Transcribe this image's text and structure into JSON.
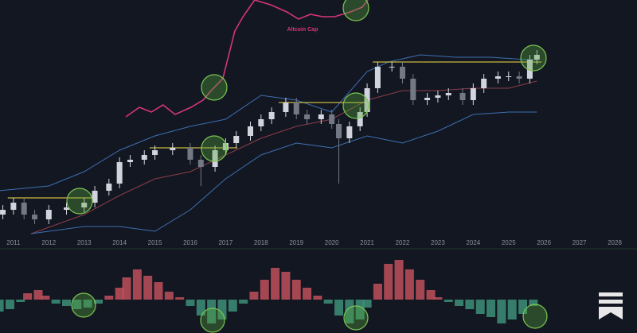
{
  "chart_data": [
    {
      "type": "candlestick",
      "x": [
        2010.7,
        2011.0,
        2011.3,
        2011.6,
        2012.0,
        2012.5,
        2013.0,
        2013.3,
        2013.7,
        2014.0,
        2014.3,
        2014.7,
        2015.0,
        2015.5,
        2016.0,
        2016.3,
        2016.7,
        2017.0,
        2017.3,
        2017.7,
        2018.0,
        2018.3,
        2018.7,
        2019.0,
        2019.3,
        2019.7,
        2020.0,
        2020.2,
        2020.5,
        2020.8,
        2021.0,
        2021.3,
        2021.7,
        2022.0,
        2022.3,
        2022.7,
        2023.0,
        2023.3,
        2023.7,
        2024.0,
        2024.3,
        2024.7,
        2025.0,
        2025.3,
        2025.6,
        2025.8
      ],
      "open": [
        10,
        12,
        15,
        10,
        8,
        12,
        13,
        15,
        20,
        23,
        32,
        33,
        35,
        37,
        38,
        33,
        30,
        37,
        40,
        43,
        47,
        50,
        53,
        57,
        52,
        50,
        52,
        48,
        42,
        47,
        53,
        63,
        72,
        72,
        67,
        58,
        59,
        60,
        61,
        58,
        63,
        67,
        68,
        68,
        67,
        75
      ],
      "high": [
        14,
        17,
        17,
        12,
        14,
        15,
        17,
        22,
        25,
        34,
        35,
        37,
        39,
        40,
        40,
        35,
        39,
        42,
        45,
        49,
        52,
        55,
        59,
        59,
        54,
        54,
        54,
        50,
        49,
        55,
        65,
        74,
        74,
        74,
        69,
        61,
        62,
        63,
        63,
        65,
        69,
        70,
        70,
        70,
        77,
        79
      ],
      "low": [
        8,
        10,
        8,
        6,
        6,
        10,
        11,
        13,
        18,
        21,
        30,
        31,
        33,
        35,
        31,
        22,
        28,
        35,
        38,
        41,
        45,
        48,
        51,
        50,
        48,
        48,
        46,
        23,
        40,
        45,
        51,
        61,
        70,
        65,
        56,
        56,
        57,
        58,
        56,
        56,
        61,
        65,
        66,
        65,
        65,
        73
      ],
      "close": [
        12,
        15,
        10,
        8,
        12,
        13,
        15,
        20,
        23,
        32,
        33,
        35,
        37,
        38,
        33,
        30,
        37,
        40,
        43,
        47,
        50,
        53,
        57,
        52,
        50,
        52,
        48,
        42,
        47,
        53,
        63,
        72,
        72,
        67,
        58,
        59,
        60,
        61,
        58,
        63,
        67,
        68,
        68,
        67,
        75,
        77
      ],
      "up_color": "#d1d4dc",
      "down_color": "#737885",
      "xlim": [
        2010.62,
        2028.63
      ],
      "xticks": [
        2011,
        2012,
        2013,
        2014,
        2015,
        2016,
        2017,
        2018,
        2019,
        2020,
        2021,
        2022,
        2023,
        2024,
        2025,
        2026,
        2027,
        2028
      ],
      "ylim": [
        0,
        100
      ],
      "series": [
        {
          "color": "#3d6fb0",
          "x": [
            2010.6,
            2012,
            2013,
            2014,
            2015,
            2016,
            2017,
            2018,
            2019,
            2020,
            2021,
            2021.6,
            2022.5,
            2023.5,
            2024.5,
            2025.5,
            2025.8
          ],
          "values": [
            20,
            22,
            28,
            37,
            43,
            47,
            50,
            60,
            58,
            53,
            70,
            74,
            77,
            76,
            76,
            75,
            75
          ]
        },
        {
          "color": "#8a3d4a",
          "x": [
            2011.5,
            2013,
            2014,
            2015,
            2016,
            2017,
            2018,
            2019,
            2020,
            2021,
            2022,
            2023,
            2024,
            2025,
            2025.8
          ],
          "values": [
            2,
            10,
            18,
            25,
            28,
            35,
            42,
            47,
            50,
            58,
            62,
            62,
            63,
            63,
            66
          ]
        },
        {
          "color": "#3d6fb0",
          "x": [
            2011.5,
            2013,
            2014,
            2015,
            2016,
            2017,
            2018,
            2019,
            2020,
            2021,
            2022,
            2023,
            2024,
            2025,
            2025.8
          ],
          "values": [
            2,
            5,
            5,
            3,
            12,
            25,
            35,
            40,
            38,
            43,
            40,
            45,
            52,
            53,
            53
          ]
        },
        {
          "name": "Altcoin Cap",
          "color": "#d6357a",
          "x": [
            2014.18,
            2014.56,
            2014.9,
            2015.23,
            2015.57,
            2016.02,
            2016.36,
            2016.59,
            2016.92,
            2017.26,
            2017.49,
            2017.82,
            2018.27,
            2018.73,
            2019.06,
            2019.4,
            2019.74,
            2020.08,
            2020.53,
            2020.86,
            2021.02
          ],
          "values": [
            51,
            55,
            53,
            56,
            52,
            55,
            58,
            62,
            67,
            87,
            93,
            100,
            98,
            95,
            92,
            94,
            93,
            93,
            95,
            97,
            100
          ]
        }
      ],
      "levels": [
        {
          "x": [
            2010.84,
            2013.27
          ],
          "value": 17
        },
        {
          "x": [
            2014.85,
            2017.33
          ],
          "value": 38
        },
        {
          "x": [
            2018.5,
            2020.98
          ],
          "value": 57
        },
        {
          "x": [
            2021.16,
            2025.93
          ],
          "value": 74
        }
      ],
      "level_color": "#c9b840"
    },
    {
      "type": "bar",
      "x": [
        2010.6,
        2010.9,
        2011.2,
        2011.4,
        2011.7,
        2011.9,
        2012.2,
        2012.5,
        2012.8,
        2013.1,
        2013.4,
        2013.7,
        2014.0,
        2014.2,
        2014.5,
        2014.8,
        2015.1,
        2015.4,
        2015.7,
        2016.0,
        2016.3,
        2016.6,
        2016.9,
        2017.2,
        2017.5,
        2017.8,
        2018.1,
        2018.4,
        2018.7,
        2019.0,
        2019.3,
        2019.6,
        2019.9,
        2020.2,
        2020.5,
        2020.8,
        2021.0,
        2021.3,
        2021.6,
        2021.9,
        2022.2,
        2022.5,
        2022.8,
        2023.0,
        2023.3,
        2023.6,
        2023.9,
        2024.2,
        2024.5,
        2024.8,
        2025.1,
        2025.4,
        2025.7
      ],
      "values": [
        -15,
        -12,
        -3,
        8,
        12,
        5,
        -5,
        -8,
        -12,
        -10,
        -5,
        5,
        15,
        28,
        38,
        30,
        22,
        10,
        3,
        -8,
        -20,
        -30,
        -25,
        -15,
        -5,
        10,
        25,
        40,
        35,
        25,
        15,
        5,
        -5,
        -20,
        -30,
        -25,
        -10,
        20,
        45,
        50,
        38,
        25,
        12,
        3,
        -3,
        -8,
        -12,
        -18,
        -22,
        -30,
        -25,
        -18,
        -8
      ],
      "positive_color": "#c0505a",
      "negative_color": "#3e8f78",
      "xlim": [
        2010.62,
        2028.63
      ],
      "ylim": [
        -42,
        62
      ]
    }
  ]
}
